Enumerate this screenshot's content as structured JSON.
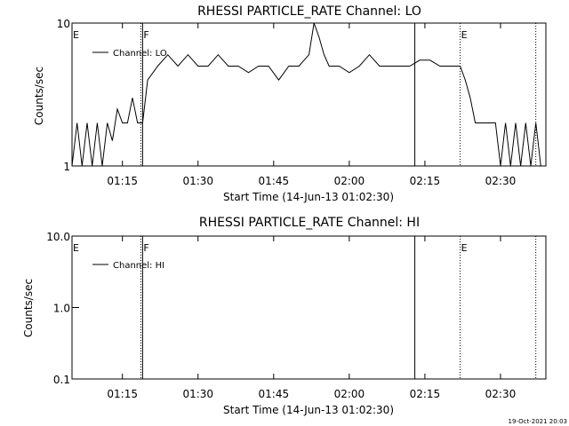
{
  "timestamp": "19-Oct-2021 20:03",
  "chart_data": [
    {
      "type": "line",
      "title": "RHESSI PARTICLE_RATE Channel: LO",
      "xlabel": "Start Time (14-Jun-13 01:02:30)",
      "ylabel": "Counts/sec",
      "yscale": "log",
      "ylim": [
        1,
        10
      ],
      "xlim": [
        "01:05",
        "02:39"
      ],
      "x_ticks": [
        "01:15",
        "01:30",
        "01:45",
        "02:00",
        "02:15",
        "02:30"
      ],
      "y_ticks": [
        "1",
        "10"
      ],
      "legend": [
        "Channel: LO"
      ],
      "legend_position": "top-left",
      "series": [
        {
          "name": "Channel: LO",
          "x": [
            "01:05",
            "01:06",
            "01:07",
            "01:08",
            "01:09",
            "01:10",
            "01:11",
            "01:12",
            "01:13",
            "01:14",
            "01:15",
            "01:16",
            "01:17",
            "01:18",
            "01:19",
            "01:20",
            "01:22",
            "01:24",
            "01:26",
            "01:28",
            "01:30",
            "01:32",
            "01:34",
            "01:36",
            "01:38",
            "01:40",
            "01:42",
            "01:44",
            "01:46",
            "01:48",
            "01:50",
            "01:52",
            "01:53",
            "01:54",
            "01:55",
            "01:56",
            "01:58",
            "02:00",
            "02:02",
            "02:04",
            "02:06",
            "02:08",
            "02:10",
            "02:12",
            "02:14",
            "02:16",
            "02:18",
            "02:20",
            "02:21",
            "02:22",
            "02:23",
            "02:24",
            "02:25",
            "02:26",
            "02:27",
            "02:28",
            "02:29",
            "02:30",
            "02:31",
            "02:32",
            "02:33",
            "02:34",
            "02:35",
            "02:36",
            "02:37",
            "02:38"
          ],
          "y": [
            1,
            2,
            1,
            2,
            1,
            2,
            1,
            2,
            1.5,
            2.5,
            2,
            2,
            3,
            2,
            2,
            4,
            5,
            6,
            5,
            6,
            5,
            5,
            6,
            5,
            5,
            4.5,
            5,
            5,
            4,
            5,
            5,
            6,
            10,
            8,
            6,
            5,
            5,
            4.5,
            5,
            6,
            5,
            5,
            5,
            5,
            5.5,
            5.5,
            5,
            5,
            5,
            5,
            4,
            3,
            2,
            2,
            2,
            2,
            2,
            1,
            2,
            1,
            2,
            1,
            2,
            1,
            2,
            1
          ]
        }
      ],
      "annotations": [
        {
          "text": "E",
          "x": "01:05"
        },
        {
          "text": "F",
          "x": "01:19"
        },
        {
          "text": "E",
          "x": "02:22"
        }
      ],
      "vertical_lines": [
        {
          "x": "01:19",
          "style": "solid"
        },
        {
          "x": "01:19",
          "style": "dotted"
        },
        {
          "x": "02:13",
          "style": "solid"
        },
        {
          "x": "02:22",
          "style": "dotted"
        },
        {
          "x": "02:37",
          "style": "dotted"
        }
      ]
    },
    {
      "type": "line",
      "title": "RHESSI PARTICLE_RATE Channel: HI",
      "xlabel": "Start Time (14-Jun-13 01:02:30)",
      "ylabel": "Counts/sec",
      "yscale": "log",
      "ylim": [
        0.1,
        10.0
      ],
      "xlim": [
        "01:05",
        "02:39"
      ],
      "x_ticks": [
        "01:15",
        "01:30",
        "01:45",
        "02:00",
        "02:15",
        "02:30"
      ],
      "y_ticks": [
        "10.0",
        "1.0",
        "0.1"
      ],
      "legend": [
        "Channel: HI"
      ],
      "legend_position": "top-left",
      "series": [
        {
          "name": "Channel: HI",
          "x": [],
          "y": []
        }
      ],
      "annotations": [
        {
          "text": "E",
          "x": "01:05"
        },
        {
          "text": "F",
          "x": "01:19"
        },
        {
          "text": "E",
          "x": "02:22"
        }
      ],
      "vertical_lines": [
        {
          "x": "01:19",
          "style": "solid"
        },
        {
          "x": "01:19",
          "style": "dotted"
        },
        {
          "x": "02:13",
          "style": "solid"
        },
        {
          "x": "02:22",
          "style": "dotted"
        },
        {
          "x": "02:37",
          "style": "dotted"
        }
      ]
    }
  ]
}
